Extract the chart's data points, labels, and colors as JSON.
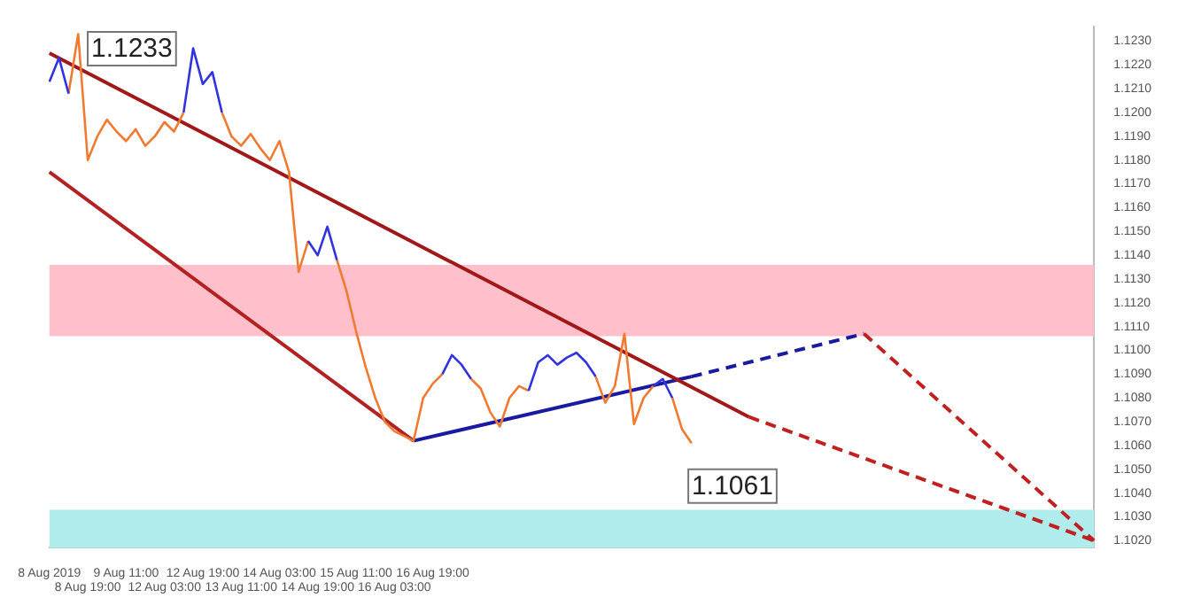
{
  "chart_data": {
    "type": "line",
    "ylim": [
      1.1017,
      1.1236
    ],
    "grid": false,
    "legend": false,
    "marker": "none",
    "categories": [
      "8 Aug 2019",
      null,
      null,
      null,
      "8 Aug 19:00",
      null,
      null,
      null,
      "9 Aug 11:00",
      null,
      null,
      null,
      "12 Aug 03:00",
      null,
      null,
      null,
      "12 Aug 19:00",
      null,
      null,
      null,
      "13 Aug 11:00",
      null,
      null,
      null,
      "14 Aug 03:00",
      null,
      null,
      null,
      "14 Aug 19:00",
      null,
      null,
      null,
      "15 Aug 11:00",
      null,
      null,
      null,
      "16 Aug 03:00",
      null,
      null,
      null,
      "16 Aug 19:00",
      null,
      null,
      null,
      null,
      null,
      null,
      null,
      null,
      null,
      null,
      null,
      null,
      null,
      null,
      null,
      null,
      null,
      null,
      null,
      null,
      null,
      null,
      null,
      null,
      null,
      null,
      null,
      null,
      null,
      null,
      null,
      null,
      null,
      null,
      null,
      null,
      null,
      null,
      null,
      null,
      null,
      null,
      null,
      null,
      null,
      null,
      null,
      null,
      null,
      null,
      null,
      null,
      null,
      null,
      null,
      null,
      null,
      null,
      null,
      null,
      null,
      null,
      null,
      null,
      null,
      null,
      null,
      null,
      null
    ],
    "yticks": [
      {
        "value": 1.102,
        "label": "1.1020"
      },
      {
        "value": 1.103,
        "label": "1.1030"
      },
      {
        "value": 1.104,
        "label": "1.1040"
      },
      {
        "value": 1.105,
        "label": "1.1050"
      },
      {
        "value": 1.106,
        "label": "1.1060"
      },
      {
        "value": 1.107,
        "label": "1.1070"
      },
      {
        "value": 1.108,
        "label": "1.1080"
      },
      {
        "value": 1.109,
        "label": "1.1090"
      },
      {
        "value": 1.11,
        "label": "1.1100"
      },
      {
        "value": 1.111,
        "label": "1.1110"
      },
      {
        "value": 1.112,
        "label": "1.1120"
      },
      {
        "value": 1.113,
        "label": "1.1130"
      },
      {
        "value": 1.114,
        "label": "1.1140"
      },
      {
        "value": 1.115,
        "label": "1.1150"
      },
      {
        "value": 1.116,
        "label": "1.1160"
      },
      {
        "value": 1.117,
        "label": "1.1170"
      },
      {
        "value": 1.118,
        "label": "1.1180"
      },
      {
        "value": 1.119,
        "label": "1.1190"
      },
      {
        "value": 1.12,
        "label": "1.1200"
      },
      {
        "value": 1.121,
        "label": "1.1210"
      },
      {
        "value": 1.122,
        "label": "1.1220"
      },
      {
        "value": 1.123,
        "label": "1.1230"
      }
    ],
    "series": [
      {
        "color": "#3333dd",
        "values": [
          1.1213,
          1.1223,
          1.1208,
          null,
          null,
          null,
          null,
          null,
          null,
          null,
          null,
          null,
          null,
          null,
          1.12,
          1.1227,
          1.1212,
          1.1217,
          1.12,
          null,
          null,
          null,
          null,
          null,
          null,
          null,
          null,
          1.1146,
          1.114,
          1.1152,
          1.1138,
          null,
          null,
          null,
          null,
          null,
          null,
          null,
          null,
          null,
          null,
          1.109,
          1.1098,
          1.1094,
          1.1088,
          null,
          null,
          null,
          null,
          null,
          1.1083,
          1.1095,
          1.1098,
          1.1094,
          1.1097,
          1.1099,
          1.1095,
          1.1089,
          null,
          null,
          null,
          null,
          null,
          1.1085,
          1.1088,
          1.108,
          null,
          null,
          null,
          null,
          null,
          null,
          null,
          null,
          null,
          null,
          null,
          null,
          null,
          null,
          null,
          null,
          null,
          null,
          null,
          null,
          null,
          null,
          null,
          null,
          null,
          null,
          null,
          null,
          null,
          null,
          null,
          null,
          null,
          null,
          null,
          null,
          null,
          null,
          null,
          null,
          null,
          null,
          null,
          null
        ]
      },
      {
        "color": "#f07a30",
        "values": [
          null,
          null,
          1.1208,
          1.1233,
          1.118,
          1.119,
          1.1197,
          1.1192,
          1.1188,
          1.1193,
          1.1186,
          1.119,
          1.1196,
          1.1192,
          1.12,
          null,
          null,
          null,
          1.12,
          1.119,
          1.1186,
          1.1191,
          1.1185,
          1.118,
          1.1188,
          1.1175,
          1.1133,
          1.1146,
          null,
          null,
          1.1138,
          1.1125,
          1.1108,
          1.1093,
          1.108,
          1.107,
          1.1066,
          1.1064,
          1.1062,
          1.108,
          1.1086,
          1.109,
          null,
          null,
          1.1088,
          1.1084,
          1.1074,
          1.1068,
          1.108,
          1.1085,
          1.1083,
          null,
          null,
          null,
          null,
          null,
          null,
          1.1089,
          1.1078,
          1.1085,
          1.1107,
          1.1069,
          1.108,
          1.1085,
          null,
          1.108,
          1.1067,
          1.1061,
          null,
          null,
          null,
          null,
          null,
          null,
          null,
          null,
          null,
          null,
          null,
          null,
          null,
          null,
          null,
          null,
          null,
          null,
          null,
          null,
          null,
          null,
          null,
          null,
          null,
          null,
          null,
          null,
          null,
          null,
          null,
          null,
          null,
          null,
          null,
          null,
          null,
          null,
          null,
          null,
          null,
          null
        ]
      },
      {
        "type": "line",
        "color": "#a01818",
        "values": [
          1.1225,
          null,
          null,
          null,
          null,
          null,
          null,
          null,
          null,
          null,
          null,
          null,
          null,
          null,
          null,
          null,
          null,
          null,
          null,
          null,
          null,
          null,
          null,
          null,
          null,
          null,
          null,
          null,
          null,
          null,
          null,
          null,
          null,
          null,
          null,
          null,
          null,
          null,
          null,
          null,
          null,
          null,
          null,
          null,
          null,
          null,
          null,
          null,
          null,
          null,
          null,
          null,
          null,
          null,
          null,
          null,
          null,
          null,
          null,
          null,
          null,
          null,
          null,
          null,
          null,
          null,
          null,
          null,
          null,
          null,
          null,
          null,
          null,
          1.1072,
          null,
          null,
          null,
          null,
          null,
          null,
          null,
          null,
          null,
          null,
          null,
          null,
          null,
          null,
          null,
          null,
          null,
          null,
          null,
          null,
          null,
          null,
          null,
          null,
          null,
          null,
          null,
          null,
          null,
          null,
          null,
          null,
          null,
          null,
          null,
          null
        ]
      },
      {
        "type": "line",
        "color": "#c02020",
        "line_style": "dashed",
        "values": [
          null,
          null,
          null,
          null,
          null,
          null,
          null,
          null,
          null,
          null,
          null,
          null,
          null,
          null,
          null,
          null,
          null,
          null,
          null,
          null,
          null,
          null,
          null,
          null,
          null,
          null,
          null,
          null,
          null,
          null,
          null,
          null,
          null,
          null,
          null,
          null,
          null,
          null,
          null,
          null,
          null,
          null,
          null,
          null,
          null,
          null,
          null,
          null,
          null,
          null,
          null,
          null,
          null,
          null,
          null,
          null,
          null,
          null,
          null,
          null,
          null,
          null,
          null,
          null,
          null,
          null,
          null,
          null,
          null,
          null,
          null,
          null,
          null,
          1.1072,
          null,
          null,
          null,
          null,
          null,
          null,
          null,
          null,
          null,
          null,
          null,
          null,
          null,
          null,
          null,
          null,
          null,
          null,
          null,
          null,
          null,
          null,
          null,
          null,
          null,
          null,
          null,
          null,
          null,
          null,
          null,
          null,
          null,
          null,
          null,
          1.102
        ]
      },
      {
        "type": "line",
        "color": "#b22222",
        "values": [
          1.1175,
          null,
          null,
          null,
          null,
          null,
          null,
          null,
          null,
          null,
          null,
          null,
          null,
          null,
          null,
          null,
          null,
          null,
          null,
          null,
          null,
          null,
          null,
          null,
          null,
          null,
          null,
          null,
          null,
          null,
          null,
          null,
          null,
          null,
          null,
          null,
          null,
          null,
          1.1062,
          null,
          null,
          null,
          null,
          null,
          null,
          null,
          null,
          null,
          null,
          null,
          null,
          null,
          null,
          null,
          null,
          null,
          null,
          null,
          null,
          null,
          null,
          null,
          null,
          null,
          null,
          null,
          null,
          null,
          null,
          null,
          null,
          null,
          null,
          null,
          null,
          null,
          null,
          null,
          null,
          null,
          null,
          null,
          null,
          null,
          null,
          null,
          null,
          null,
          null,
          null,
          null,
          null,
          null,
          null,
          null,
          null,
          null,
          null,
          null,
          null,
          null,
          null,
          null,
          null,
          null,
          null,
          null,
          null,
          null,
          null
        ]
      },
      {
        "type": "line",
        "color": "#1a1aa0",
        "values": [
          null,
          null,
          null,
          null,
          null,
          null,
          null,
          null,
          null,
          null,
          null,
          null,
          null,
          null,
          null,
          null,
          null,
          null,
          null,
          null,
          null,
          null,
          null,
          null,
          null,
          null,
          null,
          null,
          null,
          null,
          null,
          null,
          null,
          null,
          null,
          null,
          null,
          null,
          1.1062,
          null,
          null,
          null,
          null,
          null,
          null,
          null,
          null,
          null,
          null,
          null,
          null,
          null,
          null,
          null,
          null,
          null,
          null,
          null,
          null,
          null,
          null,
          null,
          null,
          null,
          null,
          null,
          null,
          1.1089,
          null,
          null,
          null,
          null,
          null,
          null,
          null,
          null,
          null,
          null,
          null,
          null,
          null,
          null,
          null,
          null,
          null,
          null,
          null,
          null,
          null,
          null,
          null,
          null,
          null,
          null,
          null,
          null,
          null,
          null,
          null,
          null,
          null,
          null,
          null,
          null,
          null,
          null,
          null,
          null,
          null,
          null
        ]
      },
      {
        "type": "line",
        "color": "#1a1aa0",
        "line_style": "dashed",
        "values": [
          null,
          null,
          null,
          null,
          null,
          null,
          null,
          null,
          null,
          null,
          null,
          null,
          null,
          null,
          null,
          null,
          null,
          null,
          null,
          null,
          null,
          null,
          null,
          null,
          null,
          null,
          null,
          null,
          null,
          null,
          null,
          null,
          null,
          null,
          null,
          null,
          null,
          null,
          null,
          null,
          null,
          null,
          null,
          null,
          null,
          null,
          null,
          null,
          null,
          null,
          null,
          null,
          null,
          null,
          null,
          null,
          null,
          null,
          null,
          null,
          null,
          null,
          null,
          null,
          null,
          null,
          null,
          1.1089,
          null,
          null,
          null,
          null,
          null,
          null,
          null,
          null,
          null,
          null,
          null,
          null,
          null,
          null,
          null,
          null,
          null,
          1.1107,
          null,
          null,
          null,
          null,
          null,
          null,
          null,
          null,
          null,
          null,
          null,
          null,
          null,
          null,
          null,
          null,
          null,
          null,
          null,
          null,
          null,
          null,
          null,
          null
        ]
      },
      {
        "type": "line",
        "color": "#c02020",
        "line_style": "dashed",
        "values": [
          null,
          null,
          null,
          null,
          null,
          null,
          null,
          null,
          null,
          null,
          null,
          null,
          null,
          null,
          null,
          null,
          null,
          null,
          null,
          null,
          null,
          null,
          null,
          null,
          null,
          null,
          null,
          null,
          null,
          null,
          null,
          null,
          null,
          null,
          null,
          null,
          null,
          null,
          null,
          null,
          null,
          null,
          null,
          null,
          null,
          null,
          null,
          null,
          null,
          null,
          null,
          null,
          null,
          null,
          null,
          null,
          null,
          null,
          null,
          null,
          null,
          null,
          null,
          null,
          null,
          null,
          null,
          null,
          null,
          null,
          null,
          null,
          null,
          null,
          null,
          null,
          null,
          null,
          null,
          null,
          null,
          null,
          null,
          null,
          null,
          1.1107,
          null,
          null,
          null,
          null,
          null,
          null,
          null,
          null,
          null,
          null,
          null,
          null,
          null,
          null,
          null,
          null,
          null,
          null,
          null,
          null,
          null,
          null,
          null,
          1.102
        ]
      }
    ],
    "bands": [
      {
        "axis": "y",
        "from": 1.1106,
        "to": 1.1136,
        "color": "#ffc0cb"
      },
      {
        "axis": "y",
        "from": 1.1017,
        "to": 1.1033,
        "color": "#b0ecec"
      }
    ],
    "annotations": [
      "1.1233",
      "1.1061"
    ]
  }
}
